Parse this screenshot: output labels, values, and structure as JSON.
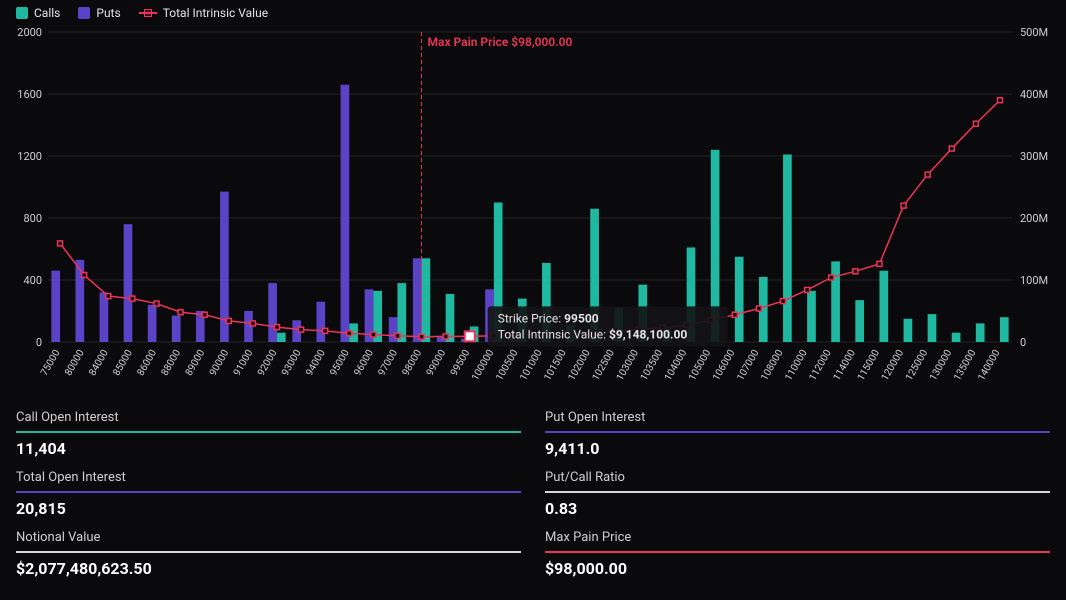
{
  "legend": {
    "calls_label": "Calls",
    "puts_label": "Puts",
    "total_iv_label": "Total Intrinsic Value"
  },
  "chart": {
    "type": "bar+line",
    "background_color": "#0a0a0c",
    "grid_color": "#222226",
    "calls_color": "#1fb9a1",
    "puts_color": "#5a43c7",
    "line_color": "#ed3358",
    "right_axis_color": "#ed3358",
    "bar_width": 0.36,
    "left_axis": {
      "min": 0,
      "max": 2000,
      "ticks": [
        0,
        400,
        800,
        1200,
        1600,
        2000
      ],
      "label_fontsize": 11
    },
    "right_axis": {
      "min": 0,
      "max": 500000000,
      "ticks": [
        "0",
        "100M",
        "200M",
        "300M",
        "400M",
        "500M"
      ],
      "label_fontsize": 11
    },
    "max_pain": {
      "strike": 98000,
      "label": "Max Pain Price $98,000.00"
    },
    "categories": [
      "75000",
      "80000",
      "84000",
      "85000",
      "86000",
      "88000",
      "89000",
      "90000",
      "91000",
      "92000",
      "93000",
      "94000",
      "95000",
      "96000",
      "97000",
      "98000",
      "99000",
      "99500",
      "100000",
      "100500",
      "101000",
      "101500",
      "102000",
      "102500",
      "103000",
      "103500",
      "104000",
      "105000",
      "106000",
      "107000",
      "108000",
      "110000",
      "112000",
      "114000",
      "115000",
      "120000",
      "125000",
      "130000",
      "135000",
      "140000"
    ],
    "calls": [
      0,
      0,
      0,
      0,
      0,
      0,
      0,
      0,
      0,
      60,
      0,
      0,
      120,
      330,
      380,
      540,
      310,
      100,
      900,
      280,
      510,
      110,
      860,
      220,
      370,
      90,
      610,
      1240,
      550,
      420,
      1210,
      330,
      520,
      270,
      460,
      150,
      180,
      60,
      120,
      160
    ],
    "puts": [
      460,
      530,
      320,
      760,
      240,
      170,
      200,
      970,
      200,
      380,
      140,
      260,
      1660,
      340,
      160,
      540,
      40,
      20,
      340,
      30,
      0,
      0,
      0,
      0,
      0,
      0,
      0,
      0,
      0,
      0,
      0,
      0,
      0,
      0,
      0,
      0,
      0,
      0,
      0,
      0
    ],
    "total_intrinsic_value": [
      159000000,
      108000000,
      74000000,
      70000000,
      62000000,
      48000000,
      44000000,
      34000000,
      30000000,
      24000000,
      20000000,
      18000000,
      14000000,
      12000000,
      10000000,
      8500000,
      9000000,
      9148100,
      10000000,
      11000000,
      12000000,
      13500000,
      15000000,
      17000000,
      20000000,
      23000000,
      27000000,
      35000000,
      44000000,
      54000000,
      66000000,
      84000000,
      104000000,
      114000000,
      126000000,
      220000000,
      270000000,
      312000000,
      352000000,
      390000000
    ],
    "tooltip": {
      "strike_label": "Strike Price:",
      "strike_value": "99500",
      "iv_label": "Total Intrinsic Value:",
      "iv_value": "$9,148,100.00",
      "index": 17
    }
  },
  "stats": {
    "call_oi": {
      "label": "Call Open Interest",
      "value": "11,404",
      "color": "#1fb9a1"
    },
    "put_oi": {
      "label": "Put Open Interest",
      "value": "9,411.0",
      "color": "#5a43c7"
    },
    "total_oi": {
      "label": "Total Open Interest",
      "value": "20,815",
      "color": "#5a43c7"
    },
    "pc_ratio": {
      "label": "Put/Call Ratio",
      "value": "0.83",
      "color": "#d6d6d6"
    },
    "notional": {
      "label": "Notional Value",
      "value": "$2,077,480,623.50",
      "color": "#d6d6d6"
    },
    "max_pain": {
      "label": "Max Pain Price",
      "value": "$98,000.00",
      "color": "#ed3358"
    }
  }
}
